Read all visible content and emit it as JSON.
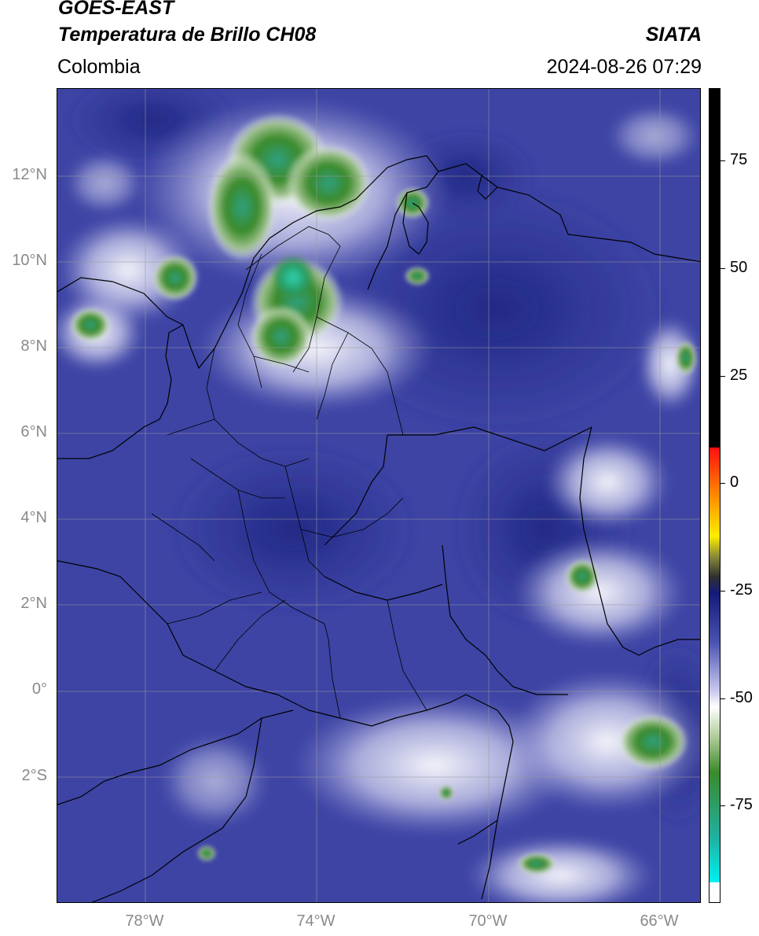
{
  "header": {
    "satellite": "GOES-EAST",
    "product": "Temperatura de Brillo CH08",
    "region": "Colombia",
    "agency": "SIATA",
    "datetime": "2024-08-26 07:29"
  },
  "map": {
    "lat_ticks": [
      "12°N",
      "10°N",
      "8°N",
      "6°N",
      "4°N",
      "2°N",
      "0°",
      "2°S"
    ],
    "lon_ticks": [
      "78°W",
      "74°W",
      "70°W",
      "66°W"
    ],
    "lat_values": [
      12,
      10,
      8,
      6,
      4,
      2,
      0,
      -2
    ],
    "lon_values": [
      -78,
      -74,
      -70,
      -66
    ]
  },
  "colorbar": {
    "labels": [
      "75",
      "50",
      "25",
      "0",
      "-25",
      "-50",
      "-75"
    ],
    "values": [
      75,
      50,
      25,
      0,
      -25,
      -50,
      -75
    ],
    "range": [
      -100,
      90
    ],
    "colors": {
      "warm_black": "#000000",
      "red": "#ff1010",
      "orange": "#ff9900",
      "yellow": "#ffee00",
      "olive": "#8a8a3a",
      "dark_blue": "#141a78",
      "lavender": "#c8c8ee",
      "white": "#ffffff",
      "green": "#3a8a2a",
      "teal": "#20c8b0",
      "cyan": "#00f0f0"
    }
  }
}
